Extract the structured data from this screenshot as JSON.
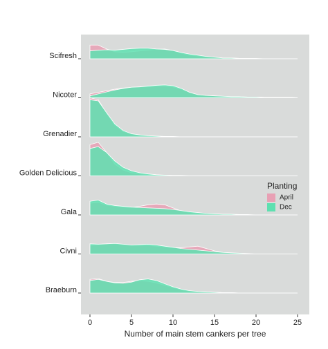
{
  "chart_data": {
    "type": "ridgeline",
    "categories": [
      "Scifresh",
      "Nicoter",
      "Grenadier",
      "Golden Delicious",
      "Gala",
      "Civni",
      "Braeburn"
    ],
    "x": [
      0,
      1,
      2,
      3,
      4,
      5,
      6,
      7,
      8,
      9,
      10,
      11,
      12,
      13,
      14,
      15,
      16,
      17,
      18,
      19,
      20,
      21,
      22,
      23,
      24,
      25
    ],
    "xlim": [
      0,
      25
    ],
    "xticks": [
      0,
      5,
      10,
      15,
      20,
      25
    ],
    "x_label": "Number of main stem cankers per tree",
    "legend_title": "Planting",
    "series": [
      {
        "name": "April",
        "color": "#e8a0b4",
        "values": [
          [
            0.35,
            0.35,
            0.25,
            0.18,
            0.16,
            0.18,
            0.2,
            0.22,
            0.24,
            0.25,
            0.21,
            0.14,
            0.09,
            0.07,
            0.05,
            0.04,
            0.02,
            0.02,
            0.01,
            0.01,
            0,
            0,
            0,
            0,
            0,
            0
          ],
          [
            0.1,
            0.14,
            0.18,
            0.22,
            0.25,
            0.27,
            0.28,
            0.28,
            0.3,
            0.3,
            0.28,
            0.22,
            0.14,
            0.08,
            0.06,
            0.05,
            0.04,
            0.03,
            0.03,
            0.02,
            0.02,
            0.01,
            0.01,
            0.01,
            0.01,
            0
          ],
          [
            1,
            0.95,
            0.6,
            0.3,
            0.14,
            0.07,
            0.04,
            0.02,
            0.01,
            0.01,
            0,
            0,
            0,
            0,
            0,
            0,
            0,
            0,
            0,
            0,
            0,
            0,
            0,
            0,
            0,
            0
          ],
          [
            0.8,
            0.86,
            0.6,
            0.3,
            0.15,
            0.08,
            0.05,
            0.03,
            0.02,
            0.01,
            0.01,
            0,
            0,
            0,
            0,
            0,
            0,
            0,
            0,
            0,
            0,
            0,
            0,
            0,
            0,
            0
          ],
          [
            0.3,
            0.32,
            0.25,
            0.22,
            0.2,
            0.19,
            0.22,
            0.26,
            0.28,
            0.26,
            0.18,
            0.1,
            0.06,
            0.04,
            0.03,
            0.02,
            0.02,
            0.01,
            0.01,
            0,
            0,
            0,
            0,
            0,
            0,
            0
          ],
          [
            0.22,
            0.24,
            0.26,
            0.26,
            0.24,
            0.22,
            0.22,
            0.22,
            0.2,
            0.18,
            0.16,
            0.16,
            0.18,
            0.2,
            0.14,
            0.08,
            0.04,
            0.02,
            0.01,
            0,
            0,
            0,
            0,
            0,
            0,
            0
          ],
          [
            0.35,
            0.37,
            0.3,
            0.27,
            0.27,
            0.3,
            0.32,
            0.3,
            0.26,
            0.2,
            0.14,
            0.08,
            0.05,
            0.04,
            0.03,
            0.02,
            0.01,
            0.01,
            0,
            0,
            0,
            0,
            0,
            0,
            0,
            0
          ]
        ]
      },
      {
        "name": "Dec",
        "color": "#5ee0b0",
        "values": [
          [
            0.2,
            0.22,
            0.23,
            0.22,
            0.24,
            0.26,
            0.27,
            0.27,
            0.25,
            0.24,
            0.21,
            0.16,
            0.12,
            0.09,
            0.06,
            0.04,
            0.02,
            0.02,
            0.01,
            0.01,
            0.01,
            0,
            0,
            0,
            0,
            0
          ],
          [
            0.05,
            0.1,
            0.15,
            0.2,
            0.24,
            0.27,
            0.28,
            0.3,
            0.32,
            0.33,
            0.31,
            0.24,
            0.14,
            0.08,
            0.06,
            0.05,
            0.04,
            0.03,
            0.03,
            0.02,
            0.02,
            0.01,
            0.01,
            0.01,
            0.01,
            0
          ],
          [
            0.95,
            0.92,
            0.62,
            0.33,
            0.16,
            0.08,
            0.05,
            0.03,
            0.02,
            0.01,
            0.01,
            0,
            0,
            0,
            0,
            0,
            0,
            0,
            0,
            0,
            0,
            0,
            0,
            0,
            0,
            0
          ],
          [
            0.7,
            0.75,
            0.6,
            0.38,
            0.22,
            0.13,
            0.08,
            0.05,
            0.03,
            0.02,
            0.01,
            0.01,
            0,
            0,
            0,
            0,
            0,
            0,
            0,
            0,
            0,
            0,
            0,
            0,
            0,
            0
          ],
          [
            0.35,
            0.38,
            0.28,
            0.24,
            0.22,
            0.2,
            0.19,
            0.18,
            0.17,
            0.16,
            0.14,
            0.11,
            0.08,
            0.06,
            0.04,
            0.03,
            0.02,
            0.02,
            0.01,
            0.01,
            0,
            0,
            0,
            0,
            0,
            0
          ],
          [
            0.26,
            0.25,
            0.26,
            0.27,
            0.25,
            0.23,
            0.24,
            0.25,
            0.23,
            0.2,
            0.17,
            0.14,
            0.12,
            0.1,
            0.08,
            0.06,
            0.04,
            0.03,
            0.02,
            0.01,
            0,
            0,
            0,
            0,
            0,
            0
          ],
          [
            0.32,
            0.35,
            0.3,
            0.26,
            0.25,
            0.28,
            0.34,
            0.36,
            0.32,
            0.24,
            0.16,
            0.1,
            0.06,
            0.04,
            0.03,
            0.02,
            0.01,
            0.01,
            0,
            0,
            0,
            0,
            0,
            0,
            0,
            0
          ]
        ]
      }
    ]
  }
}
